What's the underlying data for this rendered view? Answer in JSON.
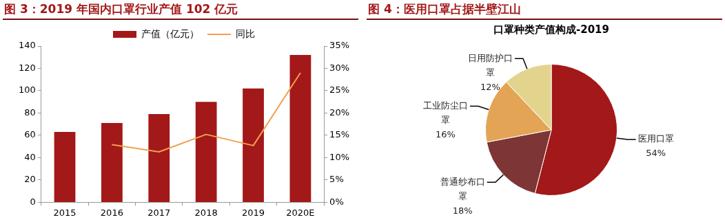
{
  "chart_data": [
    {
      "type": "bar",
      "title": "图 3：2019 年国内口罩行业产值 102 亿元",
      "categories": [
        "2015",
        "2016",
        "2017",
        "2018",
        "2019",
        "2020E"
      ],
      "series": [
        {
          "name": "产值（亿元）",
          "color": "#a31818",
          "values": [
            63,
            71,
            79,
            90,
            102,
            132
          ]
        },
        {
          "name": "同比",
          "type": "line",
          "axis": "y2",
          "color": "#f0a050",
          "values": [
            null,
            12.9,
            11.3,
            15.2,
            12.7,
            29
          ]
        }
      ],
      "ylim": [
        0,
        140
      ],
      "yticks": [
        0,
        20,
        40,
        60,
        80,
        100,
        120,
        140
      ],
      "y2lim": [
        0,
        35
      ],
      "y2ticks": [
        {
          "value": 0,
          "label": "0%"
        },
        {
          "value": 5,
          "label": "5%"
        },
        {
          "value": 10,
          "label": "10%"
        },
        {
          "value": 15,
          "label": "15%"
        },
        {
          "value": 20,
          "label": "20%"
        },
        {
          "value": 25,
          "label": "25%"
        },
        {
          "value": 30,
          "label": "30%"
        },
        {
          "value": 35,
          "label": "35%"
        }
      ],
      "grid": false,
      "legend": "top",
      "marker": "none",
      "line_style": "solid"
    },
    {
      "type": "pie",
      "title": "图 4：医用口罩占据半壁江山",
      "subtitle": "口罩种类产值构成-2019",
      "categories": [
        "医用口罩",
        "普通纱布口罩",
        "工业防尘口罩",
        "日用防护口罩"
      ],
      "values": [
        54,
        18,
        16,
        12
      ],
      "colors": [
        "#a31818",
        "#7e3535",
        "#e3a455",
        "#e2d48c"
      ],
      "value_labels": [
        "54%",
        "18%",
        "16%",
        "12%"
      ],
      "legend": false
    }
  ]
}
